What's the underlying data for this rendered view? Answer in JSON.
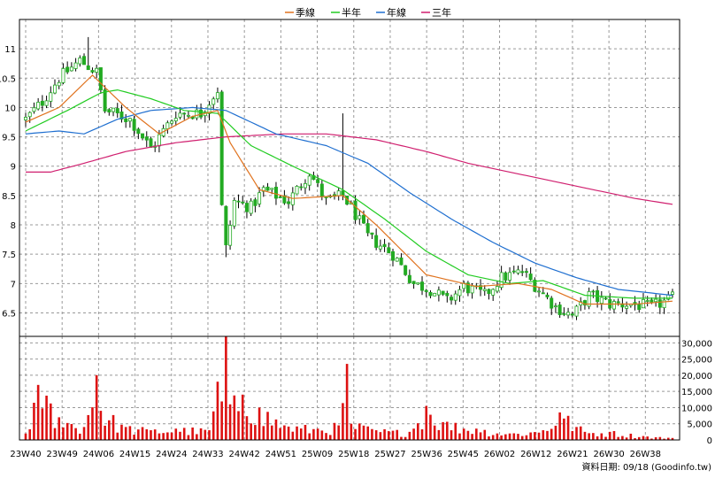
{
  "chart_data": {
    "type": "candlestick+bar",
    "legend": [
      {
        "name": "季線",
        "color": "#e0731f"
      },
      {
        "name": "半年",
        "color": "#22cc22"
      },
      {
        "name": "年線",
        "color": "#1f6fd0"
      },
      {
        "name": "三年",
        "color": "#d01f6f"
      }
    ],
    "price_axis": {
      "ticks": [
        6.5,
        7,
        7.5,
        8,
        8.5,
        9,
        9.5,
        10,
        10.5,
        11
      ],
      "range": [
        6.1,
        11.5
      ],
      "position": "left"
    },
    "volume_axis": {
      "ticks": [
        0,
        5000,
        10000,
        15000,
        20000,
        25000,
        30000
      ],
      "tick_labels": [
        "0",
        "5,000",
        "10,000",
        "15,000",
        "20,000",
        "25,000",
        "30,000"
      ],
      "range": [
        0,
        32000
      ],
      "position": "right"
    },
    "x_labels": [
      "23W40",
      "23W49",
      "24W06",
      "24W15",
      "24W24",
      "24W33",
      "24W42",
      "24W51",
      "25W09",
      "25W18",
      "25W27",
      "25W36",
      "25W45",
      "26W02",
      "26W12",
      "26W21",
      "26W30",
      "26W38"
    ],
    "weeks_between_labels": 9,
    "total_weeks": 156,
    "grid": true,
    "colors": {
      "up": "#22aa22",
      "down": "#22aa22",
      "wick": "#000000",
      "volume": "#dd1111",
      "grid": "#999999"
    },
    "ohlc_anchors": [
      {
        "w": 0,
        "c": 9.8
      },
      {
        "w": 4,
        "c": 10.1
      },
      {
        "w": 8,
        "c": 10.5
      },
      {
        "w": 13,
        "c": 10.8
      },
      {
        "w": 17,
        "c": 10.6
      },
      {
        "w": 19,
        "c": 9.95
      },
      {
        "w": 25,
        "c": 9.8
      },
      {
        "w": 30,
        "c": 9.3
      },
      {
        "w": 36,
        "c": 9.9
      },
      {
        "w": 42,
        "c": 9.9
      },
      {
        "w": 46,
        "c": 10.3
      },
      {
        "w": 47,
        "c": 8.3
      },
      {
        "w": 48,
        "c": 7.6
      },
      {
        "w": 50,
        "c": 8.4
      },
      {
        "w": 54,
        "c": 8.3
      },
      {
        "w": 57,
        "c": 8.6
      },
      {
        "w": 63,
        "c": 8.4
      },
      {
        "w": 68,
        "c": 8.9
      },
      {
        "w": 72,
        "c": 8.4
      },
      {
        "w": 76,
        "c": 8.5
      },
      {
        "w": 78,
        "c": 8.3
      },
      {
        "w": 82,
        "c": 7.8
      },
      {
        "w": 88,
        "c": 7.5
      },
      {
        "w": 93,
        "c": 7.0
      },
      {
        "w": 97,
        "c": 6.9
      },
      {
        "w": 101,
        "c": 6.7
      },
      {
        "w": 105,
        "c": 6.95
      },
      {
        "w": 110,
        "c": 6.8
      },
      {
        "w": 114,
        "c": 7.1
      },
      {
        "w": 119,
        "c": 7.2
      },
      {
        "w": 123,
        "c": 6.9
      },
      {
        "w": 127,
        "c": 6.6
      },
      {
        "w": 131,
        "c": 6.45
      },
      {
        "w": 135,
        "c": 6.8
      },
      {
        "w": 140,
        "c": 6.65
      },
      {
        "w": 145,
        "c": 6.65
      },
      {
        "w": 150,
        "c": 6.6
      },
      {
        "w": 155,
        "c": 6.75
      }
    ],
    "ma_quarter": [
      [
        0,
        9.75
      ],
      [
        8,
        10.0
      ],
      [
        16,
        10.55
      ],
      [
        24,
        10.0
      ],
      [
        32,
        9.55
      ],
      [
        40,
        9.85
      ],
      [
        46,
        9.95
      ],
      [
        49,
        9.4
      ],
      [
        56,
        8.6
      ],
      [
        64,
        8.45
      ],
      [
        76,
        8.5
      ],
      [
        84,
        8.0
      ],
      [
        96,
        7.15
      ],
      [
        108,
        6.95
      ],
      [
        118,
        7.0
      ],
      [
        126,
        6.9
      ],
      [
        134,
        6.65
      ],
      [
        146,
        6.65
      ],
      [
        155,
        6.7
      ]
    ],
    "ma_half": [
      [
        0,
        9.6
      ],
      [
        10,
        9.95
      ],
      [
        18,
        10.25
      ],
      [
        22,
        10.3
      ],
      [
        30,
        10.15
      ],
      [
        38,
        9.95
      ],
      [
        46,
        9.9
      ],
      [
        54,
        9.35
      ],
      [
        64,
        9.0
      ],
      [
        76,
        8.6
      ],
      [
        86,
        8.1
      ],
      [
        96,
        7.55
      ],
      [
        106,
        7.15
      ],
      [
        116,
        7.0
      ],
      [
        124,
        7.05
      ],
      [
        134,
        6.8
      ],
      [
        146,
        6.75
      ],
      [
        155,
        6.75
      ]
    ],
    "ma_year": [
      [
        0,
        9.55
      ],
      [
        8,
        9.6
      ],
      [
        14,
        9.55
      ],
      [
        22,
        9.8
      ],
      [
        30,
        9.95
      ],
      [
        40,
        10.0
      ],
      [
        48,
        9.95
      ],
      [
        60,
        9.55
      ],
      [
        72,
        9.35
      ],
      [
        82,
        9.05
      ],
      [
        92,
        8.55
      ],
      [
        102,
        8.1
      ],
      [
        112,
        7.7
      ],
      [
        122,
        7.35
      ],
      [
        132,
        7.1
      ],
      [
        142,
        6.9
      ],
      [
        155,
        6.8
      ]
    ],
    "ma_three_year": [
      [
        0,
        8.9
      ],
      [
        6,
        8.9
      ],
      [
        14,
        9.05
      ],
      [
        24,
        9.25
      ],
      [
        36,
        9.4
      ],
      [
        48,
        9.5
      ],
      [
        62,
        9.55
      ],
      [
        72,
        9.55
      ],
      [
        84,
        9.45
      ],
      [
        96,
        9.25
      ],
      [
        106,
        9.05
      ],
      [
        116,
        8.9
      ],
      [
        126,
        8.75
      ],
      [
        136,
        8.6
      ],
      [
        146,
        8.45
      ],
      [
        155,
        8.35
      ]
    ],
    "volume_anchors": [
      {
        "w": 0,
        "v": 2000
      },
      {
        "w": 3,
        "v": 17000
      },
      {
        "w": 8,
        "v": 7000
      },
      {
        "w": 14,
        "v": 4000
      },
      {
        "w": 17,
        "v": 20000
      },
      {
        "w": 18,
        "v": 9000
      },
      {
        "w": 24,
        "v": 4000
      },
      {
        "w": 30,
        "v": 3000
      },
      {
        "w": 36,
        "v": 3500
      },
      {
        "w": 44,
        "v": 3000
      },
      {
        "w": 46,
        "v": 18000
      },
      {
        "w": 48,
        "v": 33000
      },
      {
        "w": 49,
        "v": 11000
      },
      {
        "w": 52,
        "v": 14000
      },
      {
        "w": 56,
        "v": 10000
      },
      {
        "w": 62,
        "v": 4500
      },
      {
        "w": 70,
        "v": 3500
      },
      {
        "w": 75,
        "v": 4500
      },
      {
        "w": 77,
        "v": 23500
      },
      {
        "w": 78,
        "v": 5000
      },
      {
        "w": 84,
        "v": 3000
      },
      {
        "w": 92,
        "v": 2500
      },
      {
        "w": 96,
        "v": 10500
      },
      {
        "w": 100,
        "v": 5500
      },
      {
        "w": 108,
        "v": 3500
      },
      {
        "w": 116,
        "v": 2000
      },
      {
        "w": 124,
        "v": 3000
      },
      {
        "w": 128,
        "v": 8500
      },
      {
        "w": 134,
        "v": 2500
      },
      {
        "w": 140,
        "v": 2500
      },
      {
        "w": 148,
        "v": 1200
      },
      {
        "w": 155,
        "v": 600
      }
    ],
    "footer": "資料日期: 09/18 (Goodinfo.tw)"
  }
}
